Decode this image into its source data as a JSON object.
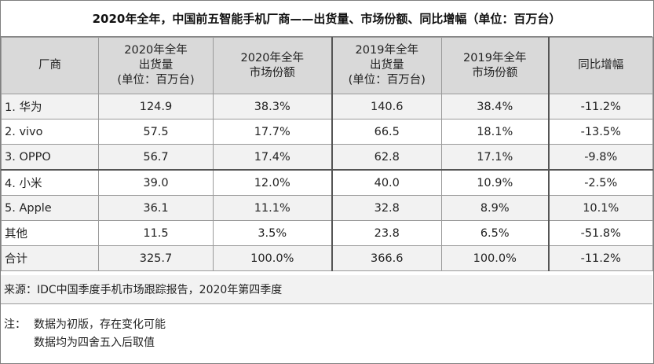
{
  "title": "2020年全年，中国前五智能手机厂商——出货量、市场份额、同比增幅（单位：百万台）",
  "header": {
    "vendor": "厂商",
    "ship2020": [
      "2020年全年",
      "出货量",
      "(单位：百万台)"
    ],
    "share2020": [
      "2020年全年",
      "市场份额"
    ],
    "ship2019": [
      "2019年全年",
      "出货量",
      "(单位：百万台)"
    ],
    "share2019": [
      "2019年全年",
      "市场份额"
    ],
    "yoy": "同比增幅"
  },
  "rows": [
    {
      "vendor": "1. 华为",
      "ship2020": "124.9",
      "share2020": "38.3%",
      "ship2019": "140.6",
      "share2019": "38.4%",
      "yoy": "-11.2%"
    },
    {
      "vendor": "2. vivo",
      "ship2020": "57.5",
      "share2020": "17.7%",
      "ship2019": "66.5",
      "share2019": "18.1%",
      "yoy": "-13.5%"
    },
    {
      "vendor": "3. OPPO",
      "ship2020": "56.7",
      "share2020": "17.4%",
      "ship2019": "62.8",
      "share2019": "17.1%",
      "yoy": "-9.8%"
    },
    {
      "vendor": "4. 小米",
      "ship2020": "39.0",
      "share2020": "12.0%",
      "ship2019": "40.0",
      "share2019": "10.9%",
      "yoy": "-2.5%"
    },
    {
      "vendor": "5. Apple",
      "ship2020": "36.1",
      "share2020": "11.1%",
      "ship2019": "32.8",
      "share2019": "8.9%",
      "yoy": "10.1%"
    },
    {
      "vendor": "其他",
      "ship2020": "11.5",
      "share2020": "3.5%",
      "ship2019": "23.8",
      "share2019": "6.5%",
      "yoy": "-51.8%"
    },
    {
      "vendor": "合计",
      "ship2020": "325.7",
      "share2020": "100.0%",
      "ship2019": "366.6",
      "share2019": "100.0%",
      "yoy": "-11.2%"
    }
  ],
  "source": "来源：IDC中国季度手机市场跟踪报告，2020年第四季度",
  "notes": {
    "label": "注：",
    "lines": [
      "数据为初版，存在变化可能",
      "数据均为四舍五入后取值"
    ]
  }
}
